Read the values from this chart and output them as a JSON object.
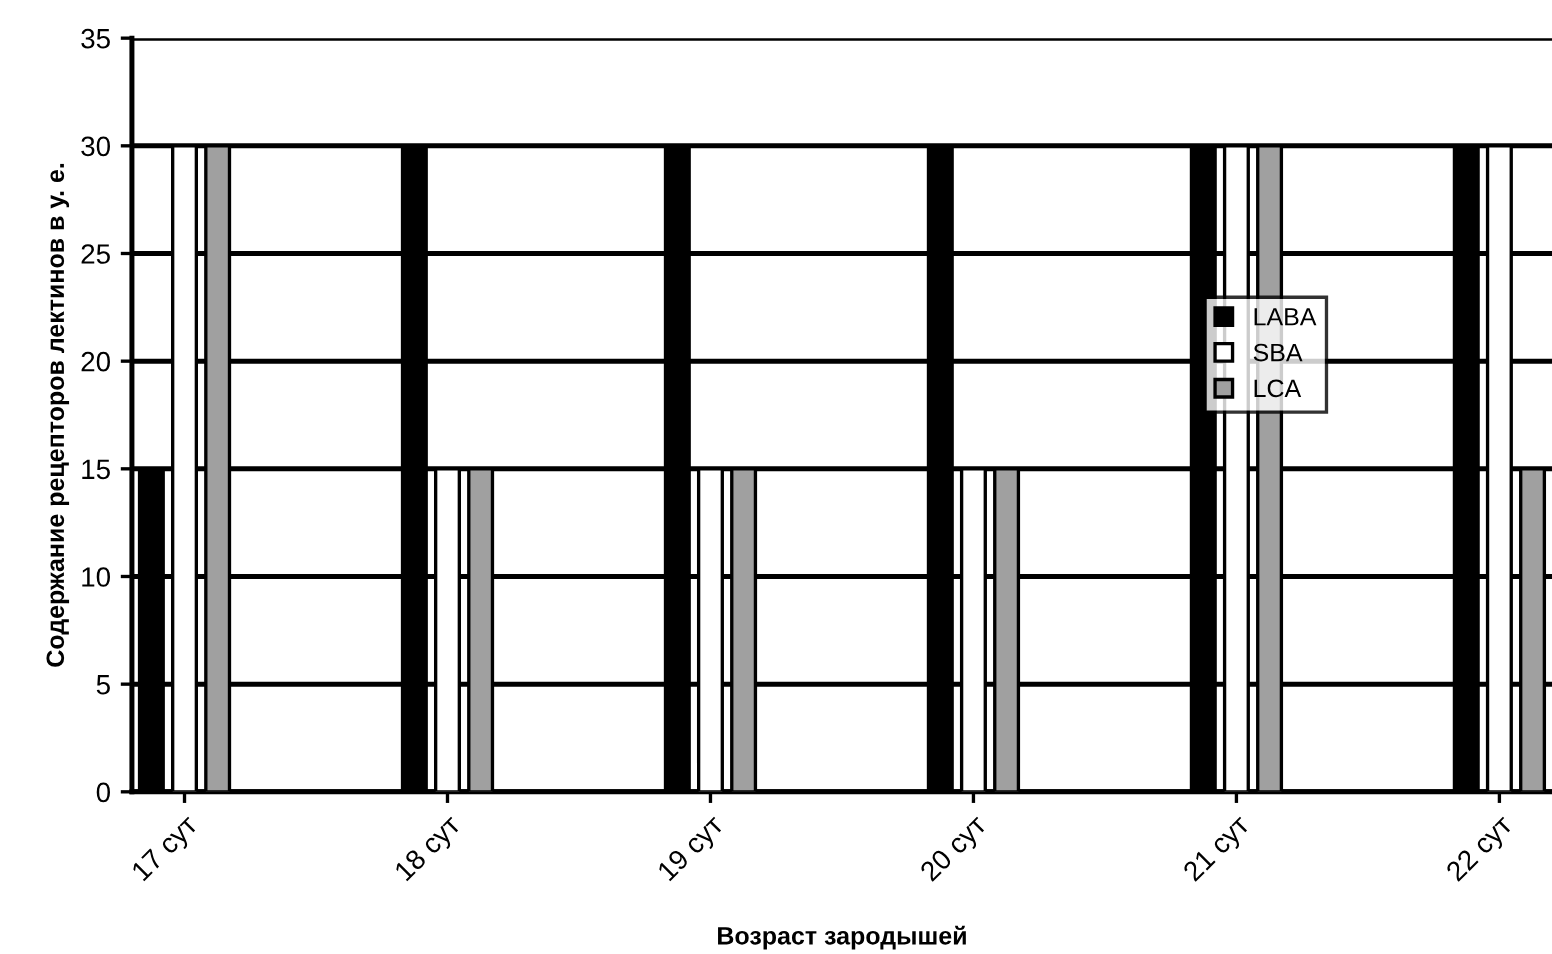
{
  "chart_data": {
    "type": "bar",
    "xlabel": "Возраст зародышей",
    "ylabel": "Содержание рецепторов лектинов в у. е.",
    "categories": [
      "17 сут",
      "18 сут",
      "19 сут",
      "20 сут",
      "21 сут",
      "22 сут"
    ],
    "series": [
      {
        "name": "LABA",
        "color": "#000000",
        "values": [
          15,
          30,
          30,
          30,
          30,
          30
        ]
      },
      {
        "name": "SBA",
        "color": "#ffffff",
        "values": [
          30,
          15,
          15,
          15,
          30,
          30
        ]
      },
      {
        "name": "LCA",
        "color": "#a0a0a0",
        "values": [
          30,
          15,
          15,
          15,
          30,
          15
        ]
      }
    ],
    "ylim": [
      0,
      35
    ],
    "yticks": [
      0,
      5,
      10,
      15,
      20,
      25,
      30,
      35
    ],
    "grid": "y",
    "legend": "right"
  }
}
